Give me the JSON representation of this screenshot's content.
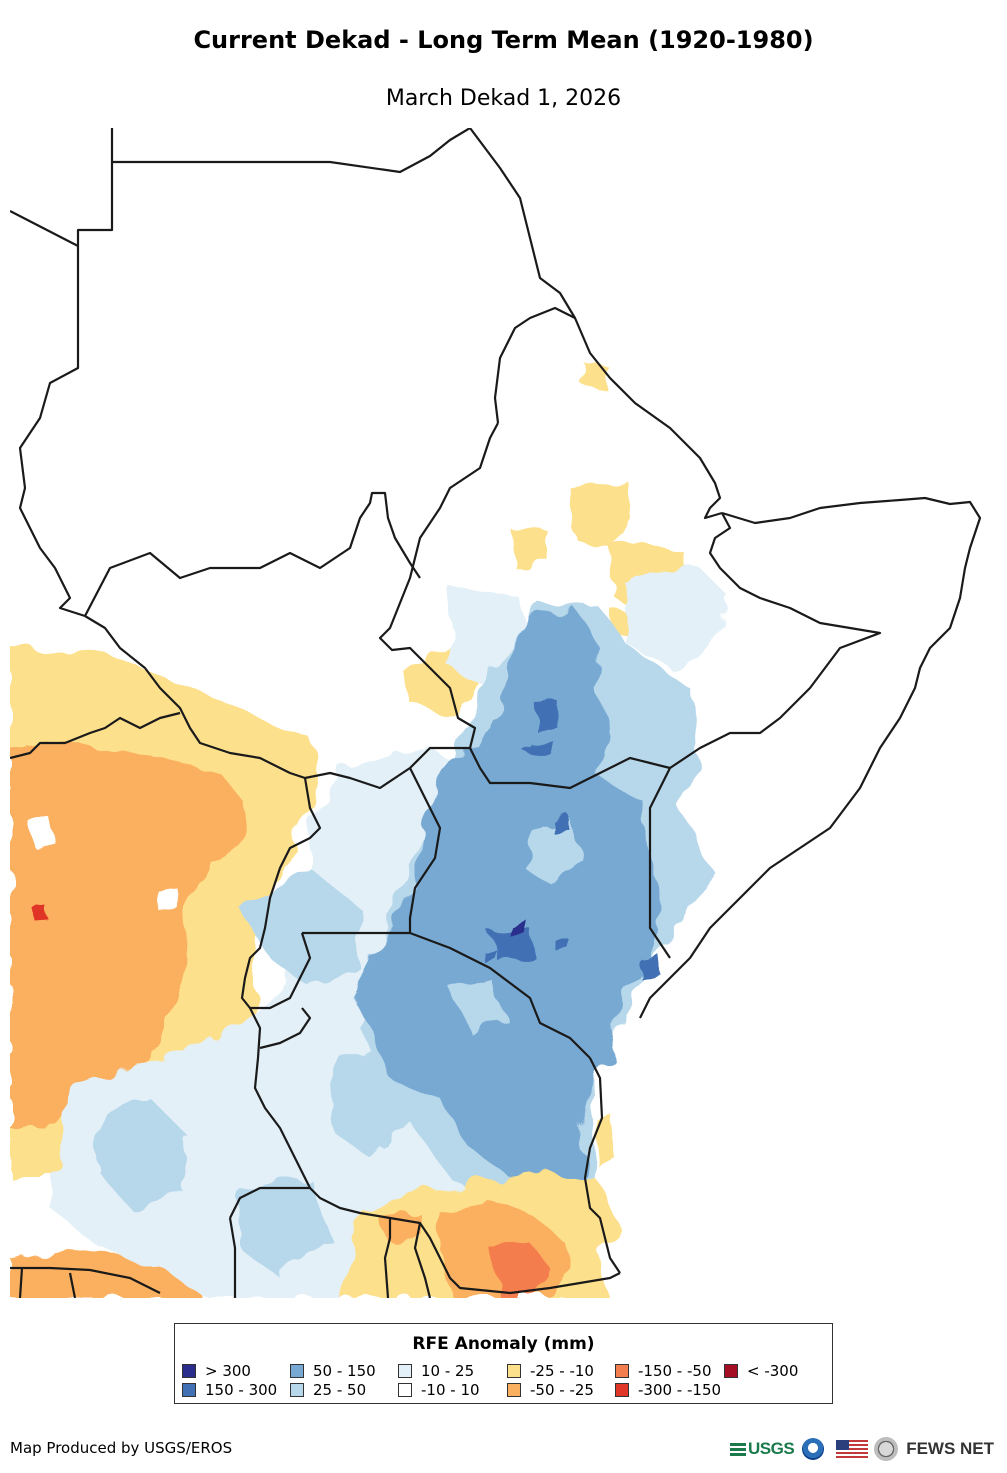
{
  "header": {
    "title": "Current Dekad - Long Term Mean (1920-1980)",
    "subtitle": "March Dekad 1, 2026"
  },
  "legend": {
    "title": "RFE Anomaly (mm)",
    "items": [
      {
        "label": "> 300",
        "color": "#2b2d8c"
      },
      {
        "label": "150 - 300",
        "color": "#4270b5"
      },
      {
        "label": "50 - 150",
        "color": "#77a9d2"
      },
      {
        "label": "25 - 50",
        "color": "#b7d7ea"
      },
      {
        "label": "10 - 25",
        "color": "#e3f0f8"
      },
      {
        "label": "-10 - 10",
        "color": "#ffffff"
      },
      {
        "label": "-25 - -10",
        "color": "#fde08c"
      },
      {
        "label": "-50 - -25",
        "color": "#fbb060"
      },
      {
        "label": "-150 - -50",
        "color": "#f47d4d"
      },
      {
        "label": "-300 - -150",
        "color": "#e03628"
      },
      {
        "label": "< -300",
        "color": "#a50f26"
      }
    ]
  },
  "footer": {
    "credit": "Map Produced by USGS/EROS",
    "usgs": "USGS",
    "fews": "FEWS NET"
  }
}
